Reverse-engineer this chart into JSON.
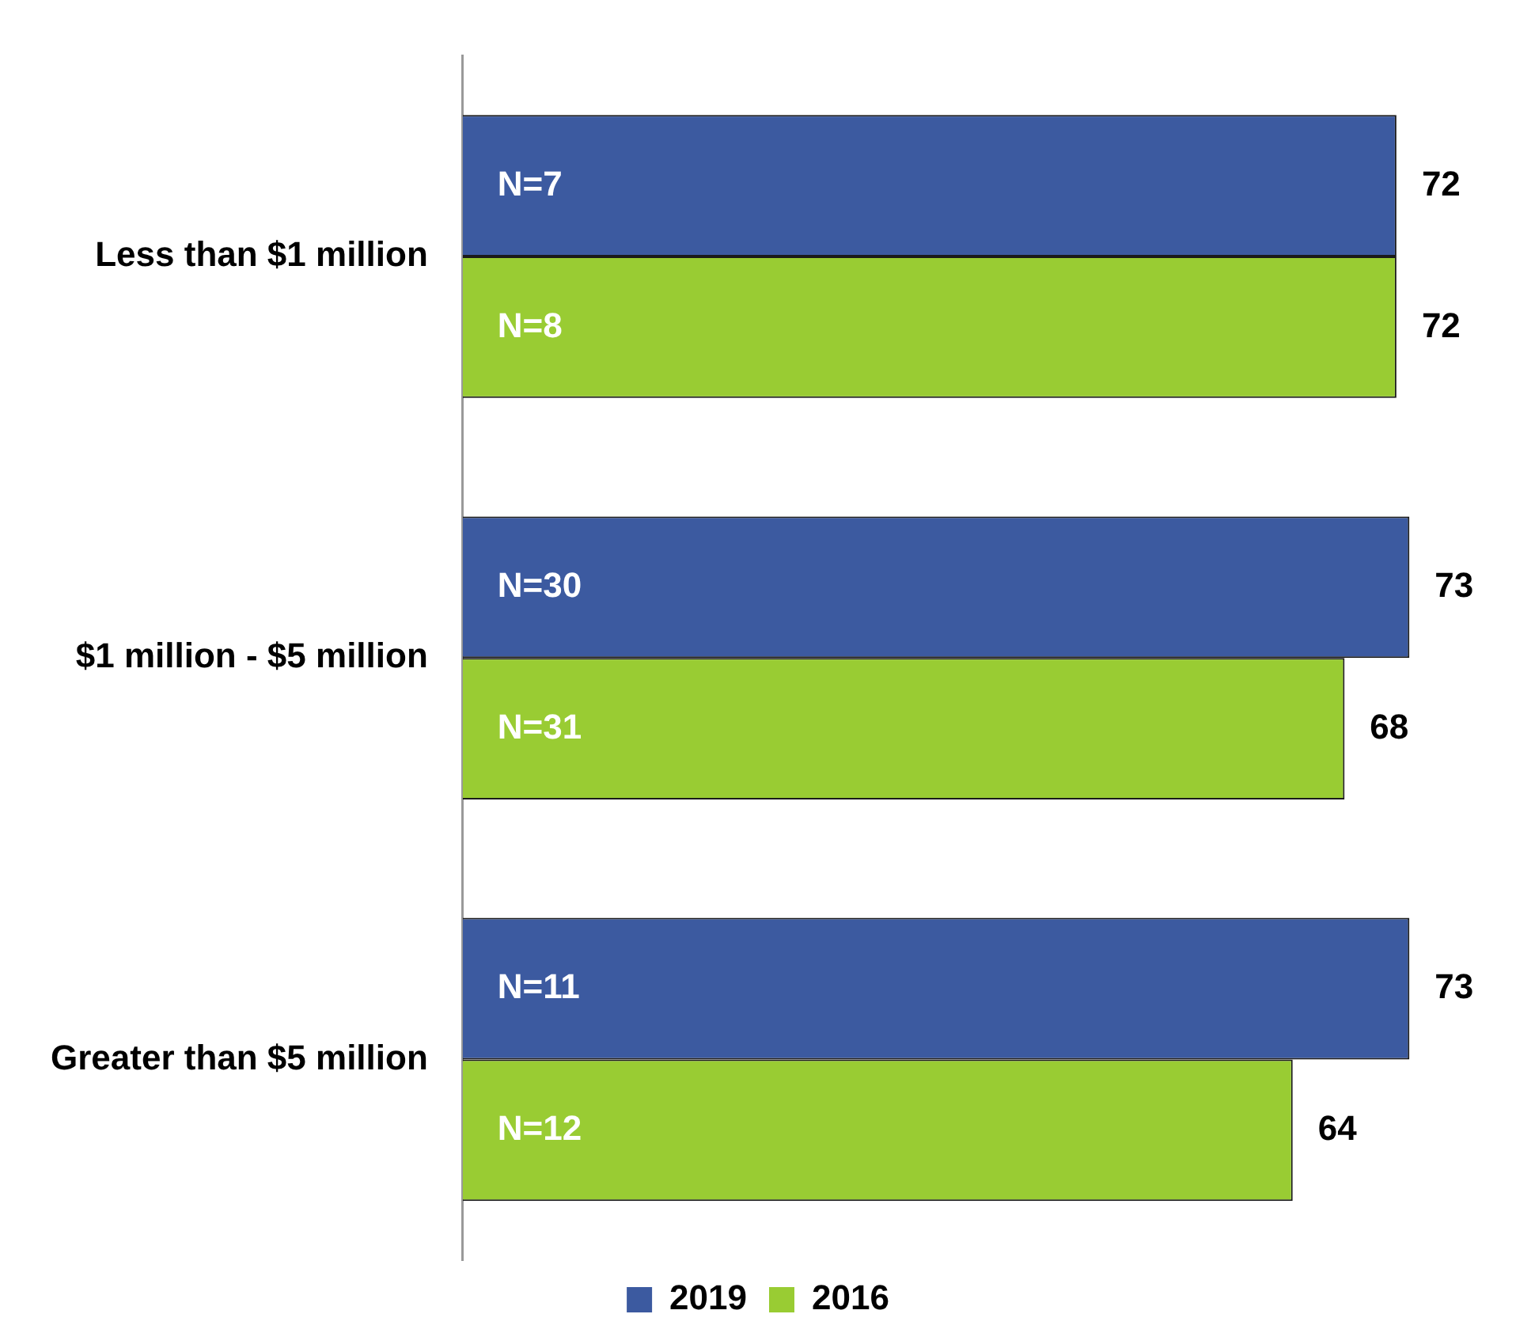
{
  "chart_data": {
    "type": "bar",
    "orientation": "horizontal",
    "categories": [
      "Less than $1 million",
      "$1 million - $5 million",
      "Greater than $5 million"
    ],
    "series": [
      {
        "name": "2019",
        "color": "#3c5aa0",
        "values": [
          72,
          73,
          73
        ]
      },
      {
        "name": "2016",
        "color": "#99cc33",
        "values": [
          72,
          68,
          64
        ]
      }
    ],
    "data_labels": true,
    "tick_labels": "y",
    "grid": false,
    "legend": "bottom",
    "annotations": [
      {
        "text": "N=7",
        "y": "Less than $1 million"
      },
      {
        "text": "N=8",
        "y": "Less than $1 million"
      },
      {
        "text": "N=30",
        "y": "$1 million - $5 million"
      },
      {
        "text": "N=31",
        "y": "$1 million - $5 million"
      },
      {
        "text": "N=11",
        "y": "Greater than $5 million"
      },
      {
        "text": "N=12",
        "y": "Greater than $5 million"
      }
    ]
  }
}
